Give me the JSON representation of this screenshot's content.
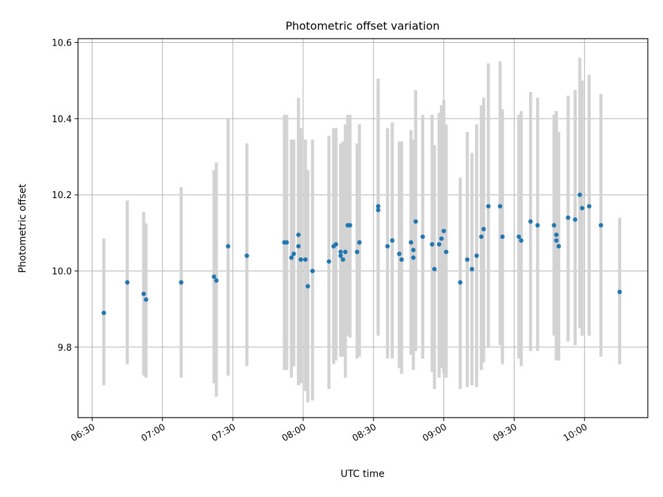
{
  "chart_data": {
    "type": "scatter",
    "title": "Photometric offset variation",
    "xlabel": "UTC time",
    "ylabel": "Photometric offset",
    "x_ticks": [
      "06:30",
      "07:00",
      "07:30",
      "08:00",
      "08:30",
      "09:00",
      "09:30",
      "10:00"
    ],
    "y_ticks": [
      "9.8",
      "10.0",
      "10.2",
      "10.4",
      "10.6"
    ],
    "xlim": [
      "06:24",
      "10:27"
    ],
    "ylim": [
      9.615,
      10.61
    ],
    "grid": true,
    "colors": {
      "point": "#1f77b4",
      "errorbar": "#d3d3d3",
      "grid": "#b0b0b0"
    },
    "series": [
      {
        "x": [
          "06:35",
          "06:45",
          "06:52",
          "06:53",
          "07:08",
          "07:22",
          "07:23",
          "07:28",
          "07:36",
          "07:52",
          "07:53",
          "07:55",
          "07:56",
          "07:58",
          "07:58",
          "07:59",
          "08:01",
          "08:02",
          "08:04",
          "08:11",
          "08:13",
          "08:14",
          "08:16",
          "08:16",
          "08:17",
          "08:18",
          "08:19",
          "08:20",
          "08:23",
          "08:24",
          "08:32",
          "08:32",
          "08:36",
          "08:38",
          "08:41",
          "08:42",
          "08:46",
          "08:47",
          "08:47",
          "08:48",
          "08:51",
          "08:55",
          "08:56",
          "08:58",
          "08:59",
          "09:00",
          "09:01",
          "09:07",
          "09:10",
          "09:12",
          "09:14",
          "09:16",
          "09:17",
          "09:19",
          "09:24",
          "09:25",
          "09:32",
          "09:33",
          "09:37",
          "09:40",
          "09:47",
          "09:48",
          "09:48",
          "09:49",
          "09:53",
          "09:56",
          "09:58",
          "09:59",
          "10:02",
          "10:07",
          "10:15"
        ],
        "y": [
          9.89,
          9.97,
          9.94,
          9.925,
          9.97,
          9.985,
          9.975,
          10.065,
          10.04,
          10.075,
          10.075,
          10.035,
          10.045,
          10.065,
          10.095,
          10.03,
          10.03,
          9.96,
          10.0,
          10.025,
          10.065,
          10.07,
          10.04,
          10.05,
          10.03,
          10.05,
          10.12,
          10.12,
          10.05,
          10.075,
          10.16,
          10.17,
          10.065,
          10.08,
          10.045,
          10.03,
          10.075,
          10.035,
          10.055,
          10.13,
          10.09,
          10.07,
          10.005,
          10.07,
          10.085,
          10.105,
          10.05,
          9.97,
          10.03,
          10.005,
          10.04,
          10.09,
          10.11,
          10.17,
          10.17,
          10.09,
          10.09,
          10.08,
          10.13,
          10.12,
          10.12,
          10.095,
          10.08,
          10.065,
          10.14,
          10.135,
          10.2,
          10.165,
          10.17,
          10.12,
          9.945
        ],
        "yerr_low": [
          9.7,
          9.755,
          9.725,
          9.72,
          9.72,
          9.705,
          9.67,
          9.725,
          9.75,
          9.74,
          9.74,
          9.72,
          9.75,
          9.73,
          9.7,
          9.705,
          9.685,
          9.655,
          9.66,
          9.69,
          9.755,
          9.765,
          9.775,
          9.775,
          9.775,
          9.72,
          9.83,
          9.825,
          9.77,
          9.775,
          9.835,
          9.83,
          9.77,
          9.77,
          9.745,
          9.73,
          9.78,
          9.74,
          9.76,
          9.79,
          9.77,
          9.735,
          9.69,
          9.72,
          9.745,
          9.73,
          9.72,
          9.69,
          9.695,
          9.7,
          9.695,
          9.74,
          9.76,
          9.8,
          9.805,
          9.755,
          9.77,
          9.75,
          9.79,
          9.79,
          9.83,
          9.77,
          9.765,
          9.765,
          9.815,
          9.805,
          9.85,
          9.83,
          9.83,
          9.775,
          9.755
        ],
        "yerr_high": [
          10.085,
          10.185,
          10.155,
          10.125,
          10.22,
          10.265,
          10.285,
          10.4,
          10.335,
          10.41,
          10.41,
          10.345,
          10.345,
          10.375,
          10.455,
          10.375,
          10.345,
          10.265,
          10.345,
          10.355,
          10.375,
          10.375,
          10.31,
          10.335,
          10.34,
          10.385,
          10.41,
          10.41,
          10.335,
          10.385,
          10.48,
          10.505,
          10.375,
          10.39,
          10.34,
          10.34,
          10.37,
          10.34,
          10.345,
          10.475,
          10.41,
          10.41,
          10.33,
          10.415,
          10.435,
          10.45,
          10.385,
          10.245,
          10.365,
          10.31,
          10.385,
          10.435,
          10.455,
          10.545,
          10.55,
          10.425,
          10.41,
          10.42,
          10.47,
          10.455,
          10.41,
          10.42,
          10.42,
          10.365,
          10.46,
          10.475,
          10.56,
          10.5,
          10.515,
          10.465,
          10.14
        ]
      }
    ]
  }
}
